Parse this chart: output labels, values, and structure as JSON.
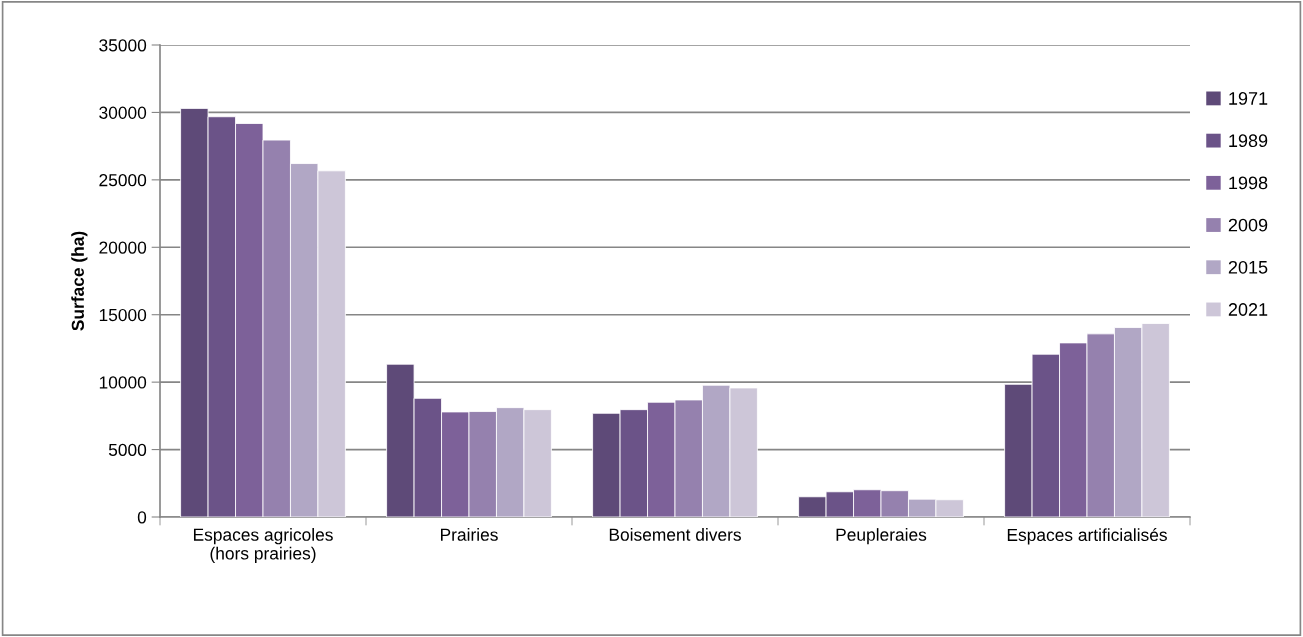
{
  "chart_data": {
    "type": "bar",
    "ylabel": "Surface (ha)",
    "categories": [
      "Espaces agricoles\n(hors prairies)",
      "Prairies",
      "Boisement divers",
      "Peupleraies",
      "Espaces artificialisés"
    ],
    "series": [
      {
        "name": "1971",
        "color": "#5e4a78",
        "values": [
          30300,
          11330,
          7690,
          1500,
          9840
        ]
      },
      {
        "name": "1989",
        "color": "#6b5388",
        "values": [
          29680,
          8800,
          7960,
          1870,
          12070
        ]
      },
      {
        "name": "1998",
        "color": "#7d6199",
        "values": [
          29180,
          7790,
          8510,
          2020,
          12910
        ]
      },
      {
        "name": "2009",
        "color": "#9581ae",
        "values": [
          27950,
          7820,
          8680,
          1950,
          13580
        ]
      },
      {
        "name": "2015",
        "color": "#b1a7c5",
        "values": [
          26210,
          8110,
          9770,
          1320,
          14050
        ]
      },
      {
        "name": "2021",
        "color": "#cdc6d8",
        "values": [
          25670,
          7960,
          9570,
          1280,
          14350
        ]
      }
    ],
    "ylim": [
      0,
      35000
    ],
    "yticks": [
      0,
      5000,
      10000,
      15000,
      20000,
      25000,
      30000,
      35000
    ],
    "grid": "y",
    "legend": "right"
  }
}
